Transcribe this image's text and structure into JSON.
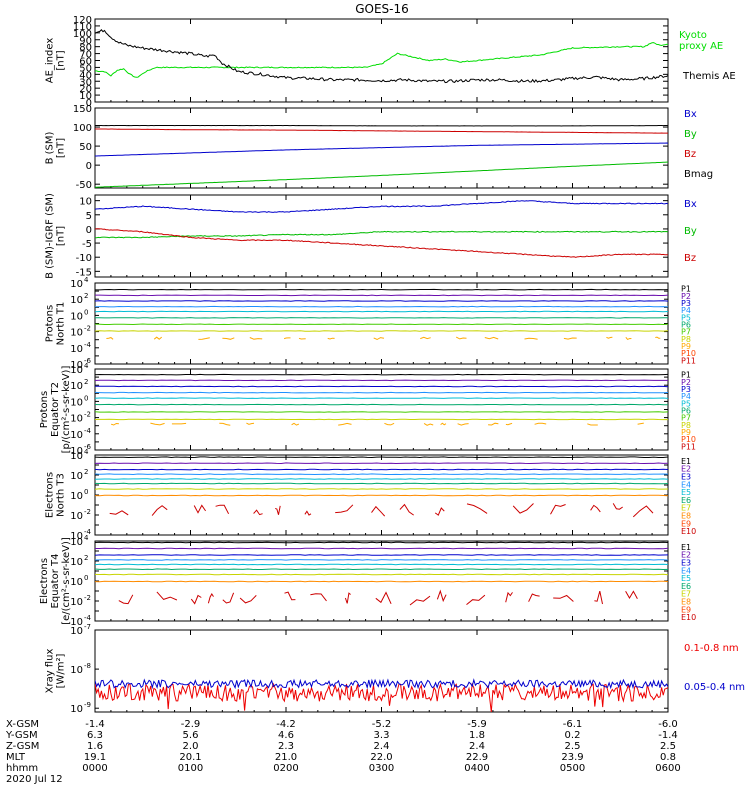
{
  "title": "GOES-16",
  "chart_data": [
    {
      "type": "line",
      "panel": "ae",
      "ylabel": [
        "AE_index",
        "[nT]"
      ],
      "ylim": [
        0,
        120
      ],
      "yticks": [
        "0",
        "10",
        "20",
        "30",
        "40",
        "50",
        "60",
        "70",
        "80",
        "90",
        "100",
        "110",
        "120"
      ],
      "xlim": [
        0,
        360
      ],
      "legend": [
        {
          "text": "Kyoto",
          "color": "#00dd00"
        },
        {
          "text": "proxy AE",
          "color": "#00dd00"
        },
        {
          "text": "Themis AE",
          "color": "#000000"
        }
      ],
      "series": [
        {
          "name": "Kyoto proxy AE",
          "color": "#00dd00",
          "x": [
            0,
            6,
            10,
            14,
            18,
            22,
            26,
            32,
            38,
            44,
            50,
            60,
            80,
            110,
            140,
            170,
            180,
            190,
            200,
            210,
            220,
            230,
            240,
            260,
            280,
            300,
            330,
            345,
            350,
            355,
            360
          ],
          "y": [
            45,
            44,
            38,
            46,
            48,
            40,
            35,
            44,
            50,
            50,
            50,
            50,
            50,
            50,
            50,
            50,
            55,
            70,
            65,
            60,
            62,
            58,
            60,
            64,
            68,
            78,
            80,
            80,
            86,
            82,
            84
          ]
        },
        {
          "name": "Themis AE",
          "color": "#000000",
          "x": [
            0,
            6,
            10,
            15,
            20,
            30,
            45,
            60,
            70,
            75,
            80,
            90,
            105,
            120,
            135,
            150,
            165,
            180,
            195,
            210,
            225,
            240,
            255,
            270,
            285,
            300,
            315,
            330,
            345,
            360
          ],
          "y": [
            100,
            104,
            94,
            86,
            82,
            78,
            74,
            70,
            66,
            68,
            56,
            44,
            40,
            35,
            34,
            32,
            32,
            31,
            32,
            30,
            30,
            32,
            32,
            30,
            31,
            34,
            36,
            32,
            34,
            38
          ]
        }
      ]
    },
    {
      "type": "line",
      "panel": "b_sm",
      "ylabel": [
        "B (SM)",
        "[nT]"
      ],
      "ylim": [
        -60,
        150
      ],
      "yticks": [
        "-50",
        "0",
        "50",
        "100",
        "150"
      ],
      "legend": [
        {
          "text": "Bx",
          "color": "#0000cc"
        },
        {
          "text": "By",
          "color": "#00bb00"
        },
        {
          "text": "Bz",
          "color": "#cc0000"
        },
        {
          "text": "Bmag",
          "color": "#000000"
        }
      ],
      "series": [
        {
          "name": "Bx",
          "color": "#0000cc",
          "x": [
            0,
            60,
            120,
            180,
            240,
            300,
            360
          ],
          "y": [
            24,
            32,
            40,
            46,
            52,
            55,
            58
          ]
        },
        {
          "name": "By",
          "color": "#00bb00",
          "x": [
            0,
            60,
            120,
            180,
            240,
            300,
            360
          ],
          "y": [
            -58,
            -48,
            -38,
            -27,
            -15,
            -3,
            8
          ]
        },
        {
          "name": "Bz",
          "color": "#cc0000",
          "x": [
            0,
            60,
            120,
            180,
            240,
            300,
            360
          ],
          "y": [
            95,
            93,
            92,
            90,
            88,
            86,
            84
          ]
        },
        {
          "name": "Bmag",
          "color": "#000000",
          "x": [
            0,
            60,
            120,
            180,
            240,
            300,
            360
          ],
          "y": [
            104,
            104,
            104,
            103,
            103,
            103,
            104
          ]
        }
      ]
    },
    {
      "type": "line",
      "panel": "b_minus_igrf",
      "ylabel": [
        "B (SM)-IGRF (SM)",
        "[nT]"
      ],
      "ylim": [
        -17,
        12
      ],
      "yticks": [
        "-15",
        "-10",
        "-5",
        "0",
        "5",
        "10"
      ],
      "legend": [
        {
          "text": "Bx",
          "color": "#0000cc"
        },
        {
          "text": "By",
          "color": "#00bb00"
        },
        {
          "text": "Bz",
          "color": "#cc0000"
        }
      ],
      "series": [
        {
          "name": "Bx",
          "color": "#0000cc",
          "x": [
            0,
            30,
            60,
            90,
            120,
            150,
            180,
            210,
            240,
            270,
            300,
            330,
            360
          ],
          "y": [
            7,
            8,
            7,
            6,
            6,
            7,
            8,
            8,
            9,
            10,
            9,
            9,
            9
          ]
        },
        {
          "name": "By",
          "color": "#00bb00",
          "x": [
            0,
            30,
            60,
            90,
            120,
            150,
            180,
            210,
            240,
            270,
            300,
            330,
            360
          ],
          "y": [
            -3,
            -3,
            -2.5,
            -2.5,
            -2,
            -2,
            -1,
            -1,
            -1,
            -1,
            -1,
            -1,
            -1
          ]
        },
        {
          "name": "Bz",
          "color": "#cc0000",
          "x": [
            0,
            30,
            60,
            90,
            120,
            150,
            180,
            210,
            240,
            270,
            300,
            330,
            360
          ],
          "y": [
            0,
            -1,
            -3,
            -4,
            -4,
            -5,
            -6,
            -7,
            -8,
            -9,
            -10,
            -9,
            -9
          ]
        }
      ]
    },
    {
      "type": "line",
      "panel": "protons_t1",
      "ylog": true,
      "ylabel": [
        "Protons",
        "North T1"
      ],
      "ylim": [
        1e-06,
        10000.0
      ],
      "ytick_exps": [
        4,
        2,
        0,
        -2,
        -4,
        -6
      ],
      "channels": [
        {
          "name": "P1",
          "color": "#000000",
          "level": 1500
        },
        {
          "name": "P2",
          "color": "#6a0dad",
          "level": 300
        },
        {
          "name": "P3",
          "color": "#0000cc",
          "level": 60
        },
        {
          "name": "P4",
          "color": "#1e90ff",
          "level": 12
        },
        {
          "name": "P5",
          "color": "#00bcd4",
          "level": 3
        },
        {
          "name": "P6",
          "color": "#00a86b",
          "level": 0.5
        },
        {
          "name": "P7",
          "color": "#44cc00",
          "level": 0.08
        },
        {
          "name": "P8",
          "color": "#c8d400",
          "level": 0.012
        },
        {
          "name": "P9",
          "color": "#ffaa00",
          "level": 0.0015
        },
        {
          "name": "P10",
          "color": "#ff4400",
          "level": null
        },
        {
          "name": "P11",
          "color": "#cc0000",
          "level": null
        }
      ]
    },
    {
      "type": "line",
      "panel": "protons_t2",
      "ylog": true,
      "ylabel": [
        "Protons",
        "Equator T2",
        "[p/(cm²-s-sr-keV)]"
      ],
      "ylim": [
        1e-06,
        10000.0
      ],
      "ytick_exps": [
        4,
        2,
        0,
        -2,
        -4,
        -6
      ],
      "channels": [
        {
          "name": "P1",
          "color": "#000000",
          "level": 2000
        },
        {
          "name": "P2",
          "color": "#6a0dad",
          "level": 400
        },
        {
          "name": "P3",
          "color": "#0000cc",
          "level": 70
        },
        {
          "name": "P4",
          "color": "#1e90ff",
          "level": 12
        },
        {
          "name": "P5",
          "color": "#00bcd4",
          "level": 2.5
        },
        {
          "name": "P6",
          "color": "#00a86b",
          "level": 0.4
        },
        {
          "name": "P7",
          "color": "#44cc00",
          "level": 0.05
        },
        {
          "name": "P8",
          "color": "#c8d400",
          "level": 0.006
        },
        {
          "name": "P9",
          "color": "#ffaa00",
          "level": 0.0015
        },
        {
          "name": "P10",
          "color": "#ff4400",
          "level": null
        },
        {
          "name": "P11",
          "color": "#cc0000",
          "level": null
        }
      ]
    },
    {
      "type": "line",
      "panel": "electrons_t3",
      "ylog": true,
      "ylabel": [
        "Electrons",
        "North T3"
      ],
      "ylim": [
        0.0001,
        10000.0
      ],
      "ytick_exps": [
        4,
        2,
        0,
        -2,
        -4
      ],
      "channels": [
        {
          "name": "E1",
          "color": "#000000",
          "level": 6000
        },
        {
          "name": "E2",
          "color": "#6a0dad",
          "level": 1500
        },
        {
          "name": "E3",
          "color": "#0000cc",
          "level": 350
        },
        {
          "name": "E4",
          "color": "#1e90ff",
          "level": 120
        },
        {
          "name": "E5",
          "color": "#00bcd4",
          "level": 40
        },
        {
          "name": "E6",
          "color": "#00a86b",
          "level": 14
        },
        {
          "name": "E7",
          "color": "#c8d400",
          "level": 4
        },
        {
          "name": "E8",
          "color": "#ff8c00",
          "level": 0.9
        },
        {
          "name": "E9",
          "color": "#ff4400",
          "level": null
        },
        {
          "name": "E10",
          "color": "#cc0000",
          "level": 0.03
        }
      ]
    },
    {
      "type": "line",
      "panel": "electrons_t4",
      "ylog": true,
      "ylabel": [
        "Electrons",
        "Equator T4",
        "[e/(cm²-s-sr-keV)]"
      ],
      "ylim": [
        0.0001,
        10000.0
      ],
      "ytick_exps": [
        4,
        2,
        0,
        -2,
        -4
      ],
      "channels": [
        {
          "name": "E1",
          "color": "#000000",
          "level": 7000
        },
        {
          "name": "E2",
          "color": "#6a0dad",
          "level": 1800
        },
        {
          "name": "E3",
          "color": "#0000cc",
          "level": 400
        },
        {
          "name": "E4",
          "color": "#1e90ff",
          "level": 130
        },
        {
          "name": "E5",
          "color": "#00bcd4",
          "level": 45
        },
        {
          "name": "E6",
          "color": "#00a86b",
          "level": 15
        },
        {
          "name": "E7",
          "color": "#c8d400",
          "level": 4.5
        },
        {
          "name": "E8",
          "color": "#ff8c00",
          "level": 0.9
        },
        {
          "name": "E9",
          "color": "#ff4400",
          "level": null
        },
        {
          "name": "E10",
          "color": "#cc0000",
          "level": 0.02
        }
      ]
    },
    {
      "type": "line",
      "panel": "xray",
      "ylog": true,
      "ylabel": [
        "Xray flux",
        "[W/m²]"
      ],
      "ylim": [
        8e-10,
        1e-07
      ],
      "ytick_exps": [
        -7,
        -8,
        -9
      ],
      "legend": [
        {
          "text": "0.1-0.8 nm",
          "color": "#ee0000"
        },
        {
          "text": "0.05-0.4 nm",
          "color": "#0000cc"
        }
      ],
      "series": [
        {
          "name": "0.1-0.8 nm",
          "color": "#ee0000",
          "level": 2.5e-09
        },
        {
          "name": "0.05-0.4 nm",
          "color": "#0000cc",
          "level": 4.2e-09
        }
      ]
    }
  ],
  "x_axis": {
    "rows": [
      {
        "label": "X-GSM",
        "values": [
          "-1.4",
          "-2.9",
          "-4.2",
          "-5.2",
          "-5.9",
          "-6.1",
          "-6.0"
        ]
      },
      {
        "label": "Y-GSM",
        "values": [
          "6.3",
          "5.6",
          "4.6",
          "3.3",
          "1.8",
          "0.2",
          "-1.4"
        ]
      },
      {
        "label": "Z-GSM",
        "values": [
          "1.6",
          "2.0",
          "2.3",
          "2.4",
          "2.4",
          "2.5",
          "2.5"
        ]
      },
      {
        "label": "MLT",
        "values": [
          "19.1",
          "20.1",
          "21.0",
          "22.0",
          "22.9",
          "23.9",
          "0.8"
        ]
      },
      {
        "label": "hhmm",
        "values": [
          "0000",
          "0100",
          "0200",
          "0300",
          "0400",
          "0500",
          "0600"
        ]
      }
    ],
    "date": "2020 Jul 12"
  }
}
